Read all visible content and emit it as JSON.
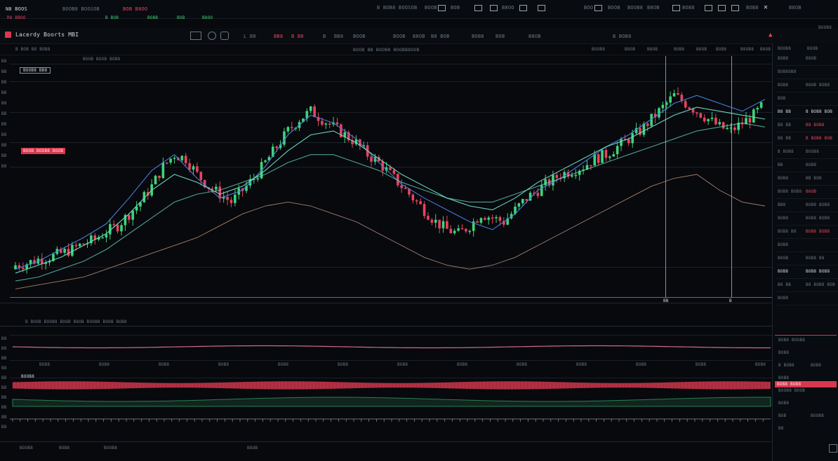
{
  "topbar": {
    "left_labels": [
      "N8 BOOS",
      "R8 BBOO",
      "B8B BOOR",
      "BOOB8 BOOSOB",
      "B BOB",
      "BOB B8OO",
      "BOBB",
      "BOB",
      "B8OO"
    ],
    "right_labels": [
      "B BOB8 BOOSOB",
      "BOOB",
      "BOB",
      "B8OO",
      "BOO",
      "BOOB",
      "BOOB8",
      "B8OB",
      "BOB8",
      "BOB8",
      "B8OB"
    ]
  },
  "toolbar": {
    "symbol_title": "Lacerdy Boorts MBI",
    "items": [
      "L B8",
      "BB8",
      "B B8",
      "B",
      "BB8",
      "BOOB",
      "BOOB",
      "B8OB",
      "B8 BOB",
      "BOB8",
      "BOB",
      "B8OB"
    ],
    "right_item": "B BOB8",
    "menu_label": "BOOB8"
  },
  "subbar": {
    "left": "B BOB  B8 BOB8",
    "center": "BOOB BB BOOB8 BOOBB8OOB",
    "right": [
      "BOOB8",
      "B8OB",
      "B8OB",
      "BOB8",
      "B8OB",
      "BOB8",
      "B8OB8",
      "B8OB"
    ]
  },
  "chart": {
    "info_box": "BOOB8 BB8",
    "price_tag": "BOOB BOOB8 BOOB",
    "legend": "BOOB  BOOB  BOB8",
    "y_labels_left": [
      "B8",
      "BB",
      "BB",
      "BB",
      "B8",
      "BB",
      "BB",
      "B8",
      "BB",
      "BB",
      "B8"
    ],
    "marker_labels": [
      "BB",
      "B"
    ]
  },
  "chart_data": {
    "type": "line",
    "title": "",
    "series": [
      {
        "values": [
          12,
          16,
          22,
          28,
          35,
          48,
          62,
          70,
          58,
          48,
          52,
          64,
          80,
          90,
          86,
          78,
          66,
          55,
          48,
          42,
          36,
          32,
          40,
          52,
          58,
          66,
          74,
          80,
          88,
          96,
          100,
          96,
          92,
          98
        ]
      },
      {
        "values": [
          10,
          14,
          18,
          24,
          30,
          40,
          52,
          60,
          56,
          50,
          54,
          62,
          72,
          80,
          82,
          76,
          68,
          60,
          54,
          48,
          44,
          42,
          48,
          56,
          62,
          68,
          74,
          78,
          84,
          90,
          94,
          92,
          90,
          88
        ]
      },
      {
        "values": [
          6,
          8,
          12,
          16,
          22,
          30,
          38,
          46,
          50,
          52,
          56,
          60,
          66,
          70,
          70,
          66,
          62,
          56,
          52,
          48,
          46,
          46,
          50,
          54,
          58,
          62,
          66,
          70,
          74,
          78,
          82,
          84,
          86,
          84
        ]
      },
      {
        "values": [
          2,
          4,
          6,
          8,
          12,
          16,
          20,
          24,
          28,
          34,
          40,
          44,
          46,
          44,
          40,
          36,
          30,
          24,
          18,
          14,
          12,
          14,
          18,
          24,
          30,
          36,
          42,
          48,
          54,
          58,
          60,
          52,
          46,
          44
        ]
      }
    ],
    "y_range": [
      0,
      110
    ],
    "candle_closes": [
      14,
      15,
      17,
      18,
      20,
      22,
      25,
      27,
      31,
      34,
      40,
      46,
      54,
      64,
      70,
      68,
      60,
      54,
      50,
      46,
      52,
      58,
      66,
      74,
      82,
      88,
      92,
      88,
      84,
      80,
      76,
      70,
      66,
      60,
      54,
      48,
      42,
      36,
      32,
      30,
      34,
      40,
      38,
      36,
      42,
      48,
      52,
      56,
      60,
      62,
      64,
      68,
      70,
      74,
      78,
      82,
      88,
      94,
      100,
      96,
      92,
      88,
      84,
      82,
      86,
      90,
      96
    ]
  },
  "indicator": {
    "title": "B BOOB BOOB8 BOOB B8OB BOOB8 BOOB BOB8",
    "y_labels": [
      "B8",
      "B8",
      "BB",
      "B8",
      "BB",
      "B8",
      "BB",
      "BB",
      "BB",
      "B8"
    ],
    "x_labels": [
      "BOB8",
      "BOB8",
      "BOB8",
      "BOB8",
      "BOB8",
      "BOB8",
      "BOB8",
      "BOB8",
      "BOB8",
      "BOB8",
      "BOB8",
      "BOB8",
      "BOB8"
    ],
    "sub_label": "BOOB8"
  },
  "footer": {
    "labels": [
      "BOOB8",
      "BOB8",
      "BOOB8",
      "B8OB"
    ]
  },
  "sidebar": {
    "header": [
      "BOOB8",
      "BOOB"
    ],
    "rows": [
      {
        "a": "BOB8",
        "b": "B8OB",
        "color": "dim"
      },
      {
        "a": "BOB8OB8",
        "b": "",
        "color": "dim"
      },
      {
        "a": "BOB8",
        "b": "B8OB BOB8",
        "color": "dim"
      },
      {
        "a": "BOB",
        "b": "",
        "color": "dim"
      },
      {
        "a": "B8 BB",
        "b": "B BOB8 BOB",
        "color": "white"
      },
      {
        "a": "B8 BB",
        "b": "B8 BOB8",
        "color": "red"
      },
      {
        "a": "B8 BB",
        "b": "B BOB8 BOB",
        "color": "red"
      },
      {
        "a": "B BOB8",
        "b": "BOOB8",
        "color": "dim"
      },
      {
        "a": "BB",
        "b": "BOB8",
        "color": "dim"
      },
      {
        "a": "BOB8",
        "b": "BB BOB",
        "color": "dim"
      },
      {
        "a": "BOB8 BOB8",
        "b": "B8OB",
        "color": "red"
      },
      {
        "a": "BB8",
        "b": "BOB8 BOB8",
        "color": "dim"
      },
      {
        "a": "BOB8",
        "b": "BOB8 BOB8",
        "color": "dim"
      },
      {
        "a": "BOB8 B8",
        "b": "BOB8 BOB8",
        "color": "red"
      },
      {
        "a": "BOB8",
        "b": "",
        "color": "dim"
      },
      {
        "a": "B8OB",
        "b": "BOB8 B8",
        "color": "dim"
      },
      {
        "a": "BOB8",
        "b": "BOB8 BOB8",
        "color": "white"
      },
      {
        "a": "B8 BB",
        "b": "B8 BOB8 BOB",
        "color": "dim"
      },
      {
        "a": "BOB8",
        "b": "",
        "color": "dim"
      }
    ],
    "lower_rows": [
      {
        "a": "BOB8 BOOB8",
        "b": ""
      },
      {
        "a": "BOB8",
        "b": ""
      },
      {
        "a": "B BOB8",
        "b": "BOB8"
      },
      {
        "a": "BOB8",
        "b": ""
      },
      {
        "a": "BOOB8 BOOB",
        "b": ""
      },
      {
        "a": "BOB8",
        "b": ""
      },
      {
        "a": "BOB",
        "b": "BOOB8"
      },
      {
        "a": "B8",
        "b": ""
      }
    ],
    "red_tag": "BOB8 BOB8"
  },
  "colors": {
    "background": "#07090d",
    "up": "#3fd47a",
    "down": "#e8435f",
    "ma_blue": "#4f7fe0",
    "ma_teal": "#6fe0c8",
    "ma_brown": "#b08670",
    "accent_red": "#d8384f"
  }
}
